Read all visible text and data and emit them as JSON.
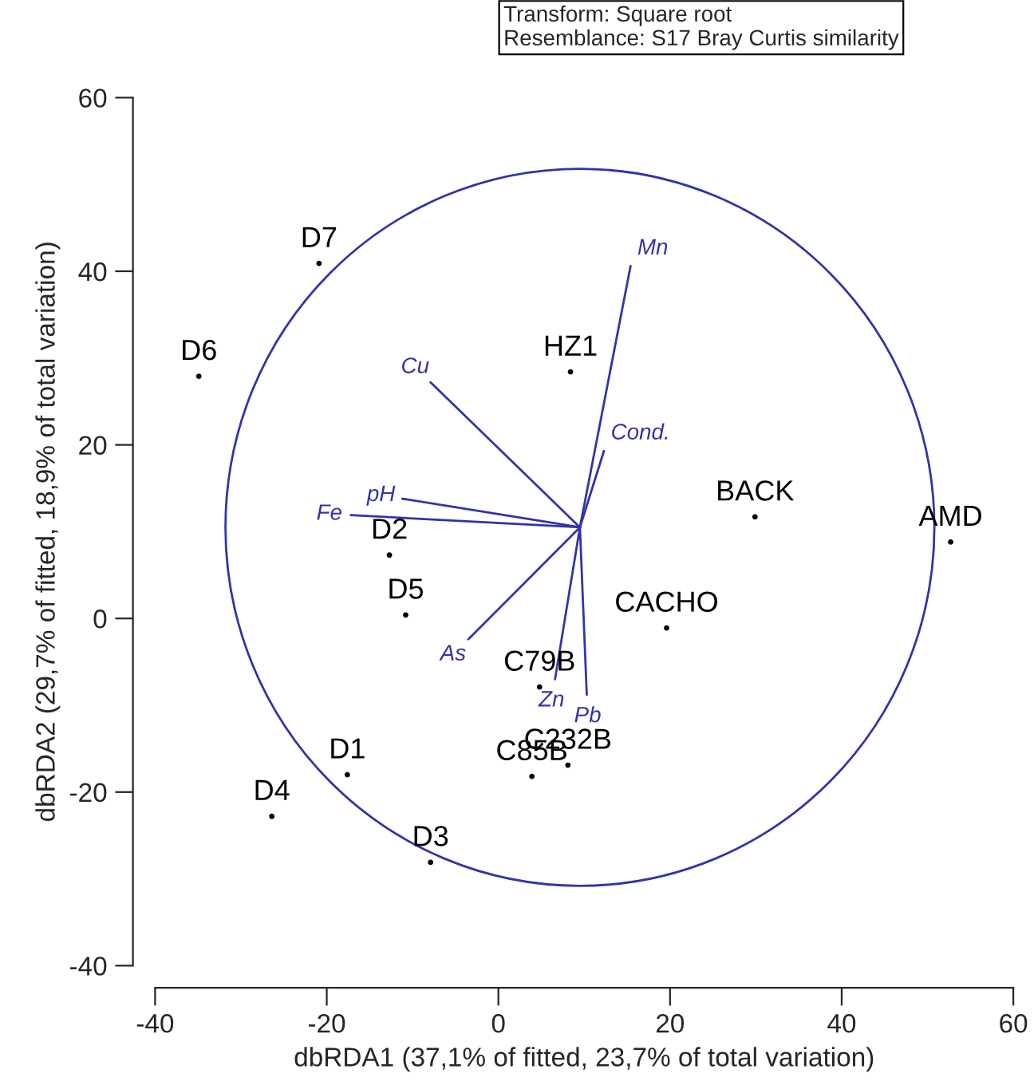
{
  "chart_data": {
    "type": "scatter",
    "xlabel": "dbRDA1 (37,1% of fitted, 23,7% of total variation)",
    "ylabel": "dbRDA2 (29,7% of fitted, 18,9% of total variation)",
    "annotations": [
      "Transform: Square root\nResemblance: S17 Bray Curtis similarity"
    ],
    "xlim": [
      -40,
      60
    ],
    "ylim": [
      -40,
      60
    ],
    "xticks": [
      -40,
      -20,
      0,
      20,
      40,
      60
    ],
    "yticks": [
      -40,
      -20,
      0,
      20,
      40,
      60
    ],
    "grid": false,
    "legend": false,
    "series": [
      {
        "color": "#000000",
        "marker": "circle",
        "x": [
          -20.9,
          -34.9,
          8.4,
          29.9,
          52.7,
          -12.7,
          -10.8,
          19.6,
          4.8,
          8.1,
          3.9,
          -17.6,
          -26.4,
          -7.9
        ],
        "values": [
          40.9,
          27.9,
          28.4,
          11.7,
          8.8,
          7.3,
          0.4,
          -1.1,
          -7.9,
          -16.9,
          -18.2,
          -18.0,
          -22.8,
          -28.1
        ],
        "value_labels": [
          "D7",
          "D6",
          "HZ1",
          "BACK",
          "AMD",
          "D2",
          "D5",
          "CACHO",
          "C79B",
          "C232B",
          "C85B",
          "D1",
          "D4",
          "D3"
        ]
      },
      {
        "type": "line",
        "name": "Mn",
        "color": "#3333aa",
        "x": [
          9.5,
          15.4
        ],
        "values": [
          10.5,
          40.6
        ]
      },
      {
        "type": "line",
        "name": "Cond.",
        "color": "#3333aa",
        "x": [
          9.5,
          12.3
        ],
        "values": [
          10.5,
          19.3
        ]
      },
      {
        "type": "line",
        "name": "Cu",
        "color": "#3333aa",
        "x": [
          9.5,
          -7.9
        ],
        "values": [
          10.5,
          27.2
        ]
      },
      {
        "type": "line",
        "name": "pH",
        "color": "#3333aa",
        "x": [
          9.5,
          -11.2
        ],
        "values": [
          10.5,
          13.8
        ]
      },
      {
        "type": "line",
        "name": "Fe",
        "color": "#3333aa",
        "x": [
          9.5,
          -17.2
        ],
        "values": [
          10.5,
          11.9
        ]
      },
      {
        "type": "line",
        "name": "As",
        "color": "#3333aa",
        "x": [
          9.5,
          -3.5
        ],
        "values": [
          10.5,
          -2.4
        ]
      },
      {
        "type": "line",
        "name": "Zn",
        "color": "#3333aa",
        "x": [
          9.5,
          6.6
        ],
        "values": [
          10.5,
          -7.0
        ]
      },
      {
        "type": "line",
        "name": "Pb",
        "color": "#3333aa",
        "x": [
          9.5,
          10.3
        ],
        "values": [
          10.5,
          -8.8
        ]
      }
    ]
  }
}
